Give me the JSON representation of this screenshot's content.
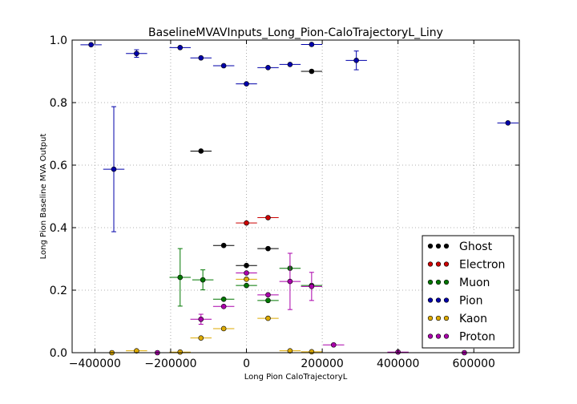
{
  "chart_data": {
    "type": "scatter",
    "title": "BaselineMVAVInputs_Long_Pion-CaloTrajectoryL_Liny",
    "xlabel": "Long Pion CaloTrajectoryL",
    "ylabel": "Long Pion Baseline MVA Output",
    "xlim": [
      -460000,
      720000
    ],
    "ylim": [
      0.0,
      1.0
    ],
    "x_ticks": [
      -400000,
      -200000,
      0,
      200000,
      400000,
      600000
    ],
    "x_tick_labels": [
      "−400000",
      "−200000",
      "0",
      "200000",
      "400000",
      "600000"
    ],
    "y_ticks": [
      0.0,
      0.2,
      0.4,
      0.6,
      0.8,
      1.0
    ],
    "y_tick_labels": [
      "0.0",
      "0.2",
      "0.4",
      "0.6",
      "0.8",
      "1.0"
    ],
    "grid": true,
    "legend_position": "bottom-right",
    "series": [
      {
        "name": "Ghost",
        "color": "#000000",
        "points": [
          {
            "x": -120000,
            "y": 0.645,
            "xerr": 28000,
            "yerr": 0.0
          },
          {
            "x": -60000,
            "y": 0.343,
            "xerr": 28000,
            "yerr": 0.0
          },
          {
            "x": 0,
            "y": 0.279,
            "xerr": 28000,
            "yerr": 0.0
          },
          {
            "x": 57000,
            "y": 0.333,
            "xerr": 28000,
            "yerr": 0.0
          },
          {
            "x": 172000,
            "y": 0.9,
            "xerr": 28000,
            "yerr": 0.0
          }
        ]
      },
      {
        "name": "Electron",
        "color": "#cc0000",
        "points": [
          {
            "x": 0,
            "y": 0.415,
            "xerr": 28000,
            "yerr": 0.0
          },
          {
            "x": 57000,
            "y": 0.432,
            "xerr": 28000,
            "yerr": 0.0
          }
        ]
      },
      {
        "name": "Muon",
        "color": "#007700",
        "points": [
          {
            "x": -175000,
            "y": 0.241,
            "xerr": 28000,
            "yerr": 0.092
          },
          {
            "x": -115000,
            "y": 0.233,
            "xerr": 28000,
            "yerr": 0.032
          },
          {
            "x": -60000,
            "y": 0.171,
            "xerr": 28000,
            "yerr": 0.0
          },
          {
            "x": 0,
            "y": 0.215,
            "xerr": 28000,
            "yerr": 0.0
          },
          {
            "x": 57000,
            "y": 0.167,
            "xerr": 28000,
            "yerr": 0.0
          },
          {
            "x": 115000,
            "y": 0.27,
            "xerr": 28000,
            "yerr": 0.0
          },
          {
            "x": 172000,
            "y": 0.215,
            "xerr": 28000,
            "yerr": 0.0
          }
        ]
      },
      {
        "name": "Pion",
        "color": "#0000aa",
        "points": [
          {
            "x": -410000,
            "y": 0.985,
            "xerr": 28000,
            "yerr": 0.0
          },
          {
            "x": -350000,
            "y": 0.587,
            "xerr": 28000,
            "yerr": 0.2
          },
          {
            "x": -290000,
            "y": 0.957,
            "xerr": 28000,
            "yerr": 0.012
          },
          {
            "x": -175000,
            "y": 0.976,
            "xerr": 28000,
            "yerr": 0.0
          },
          {
            "x": -120000,
            "y": 0.943,
            "xerr": 28000,
            "yerr": 0.0
          },
          {
            "x": -60000,
            "y": 0.918,
            "xerr": 28000,
            "yerr": 0.0
          },
          {
            "x": 0,
            "y": 0.86,
            "xerr": 28000,
            "yerr": 0.0
          },
          {
            "x": 57000,
            "y": 0.912,
            "xerr": 28000,
            "yerr": 0.0
          },
          {
            "x": 115000,
            "y": 0.922,
            "xerr": 28000,
            "yerr": 0.0
          },
          {
            "x": 172000,
            "y": 0.986,
            "xerr": 28000,
            "yerr": 0.0
          },
          {
            "x": 290000,
            "y": 0.935,
            "xerr": 28000,
            "yerr": 0.03
          },
          {
            "x": 690000,
            "y": 0.735,
            "xerr": 28000,
            "yerr": 0.0
          }
        ]
      },
      {
        "name": "Kaon",
        "color": "#ddaa00",
        "points": [
          {
            "x": -355000,
            "y": 0.0,
            "xerr": 28000,
            "yerr": 0.0
          },
          {
            "x": -290000,
            "y": 0.006,
            "xerr": 28000,
            "yerr": 0.0
          },
          {
            "x": -175000,
            "y": 0.002,
            "xerr": 28000,
            "yerr": 0.0
          },
          {
            "x": -120000,
            "y": 0.047,
            "xerr": 28000,
            "yerr": 0.0
          },
          {
            "x": -60000,
            "y": 0.077,
            "xerr": 28000,
            "yerr": 0.0
          },
          {
            "x": 0,
            "y": 0.235,
            "xerr": 28000,
            "yerr": 0.0
          },
          {
            "x": 57000,
            "y": 0.11,
            "xerr": 28000,
            "yerr": 0.0
          },
          {
            "x": 115000,
            "y": 0.006,
            "xerr": 28000,
            "yerr": 0.0
          },
          {
            "x": 172000,
            "y": 0.003,
            "xerr": 28000,
            "yerr": 0.0
          }
        ]
      },
      {
        "name": "Proton",
        "color": "#aa00aa",
        "points": [
          {
            "x": -235000,
            "y": 0.0,
            "xerr": 28000,
            "yerr": 0.0
          },
          {
            "x": -120000,
            "y": 0.107,
            "xerr": 28000,
            "yerr": 0.016
          },
          {
            "x": -60000,
            "y": 0.148,
            "xerr": 28000,
            "yerr": 0.0
          },
          {
            "x": 0,
            "y": 0.255,
            "xerr": 28000,
            "yerr": 0.0
          },
          {
            "x": 57000,
            "y": 0.185,
            "xerr": 28000,
            "yerr": 0.0
          },
          {
            "x": 115000,
            "y": 0.228,
            "xerr": 28000,
            "yerr": 0.09
          },
          {
            "x": 172000,
            "y": 0.212,
            "xerr": 28000,
            "yerr": 0.045
          },
          {
            "x": 230000,
            "y": 0.025,
            "xerr": 28000,
            "yerr": 0.0
          },
          {
            "x": 400000,
            "y": 0.002,
            "xerr": 28000,
            "yerr": 0.0
          },
          {
            "x": 575000,
            "y": 0.0,
            "xerr": 28000,
            "yerr": 0.0
          }
        ]
      }
    ]
  }
}
